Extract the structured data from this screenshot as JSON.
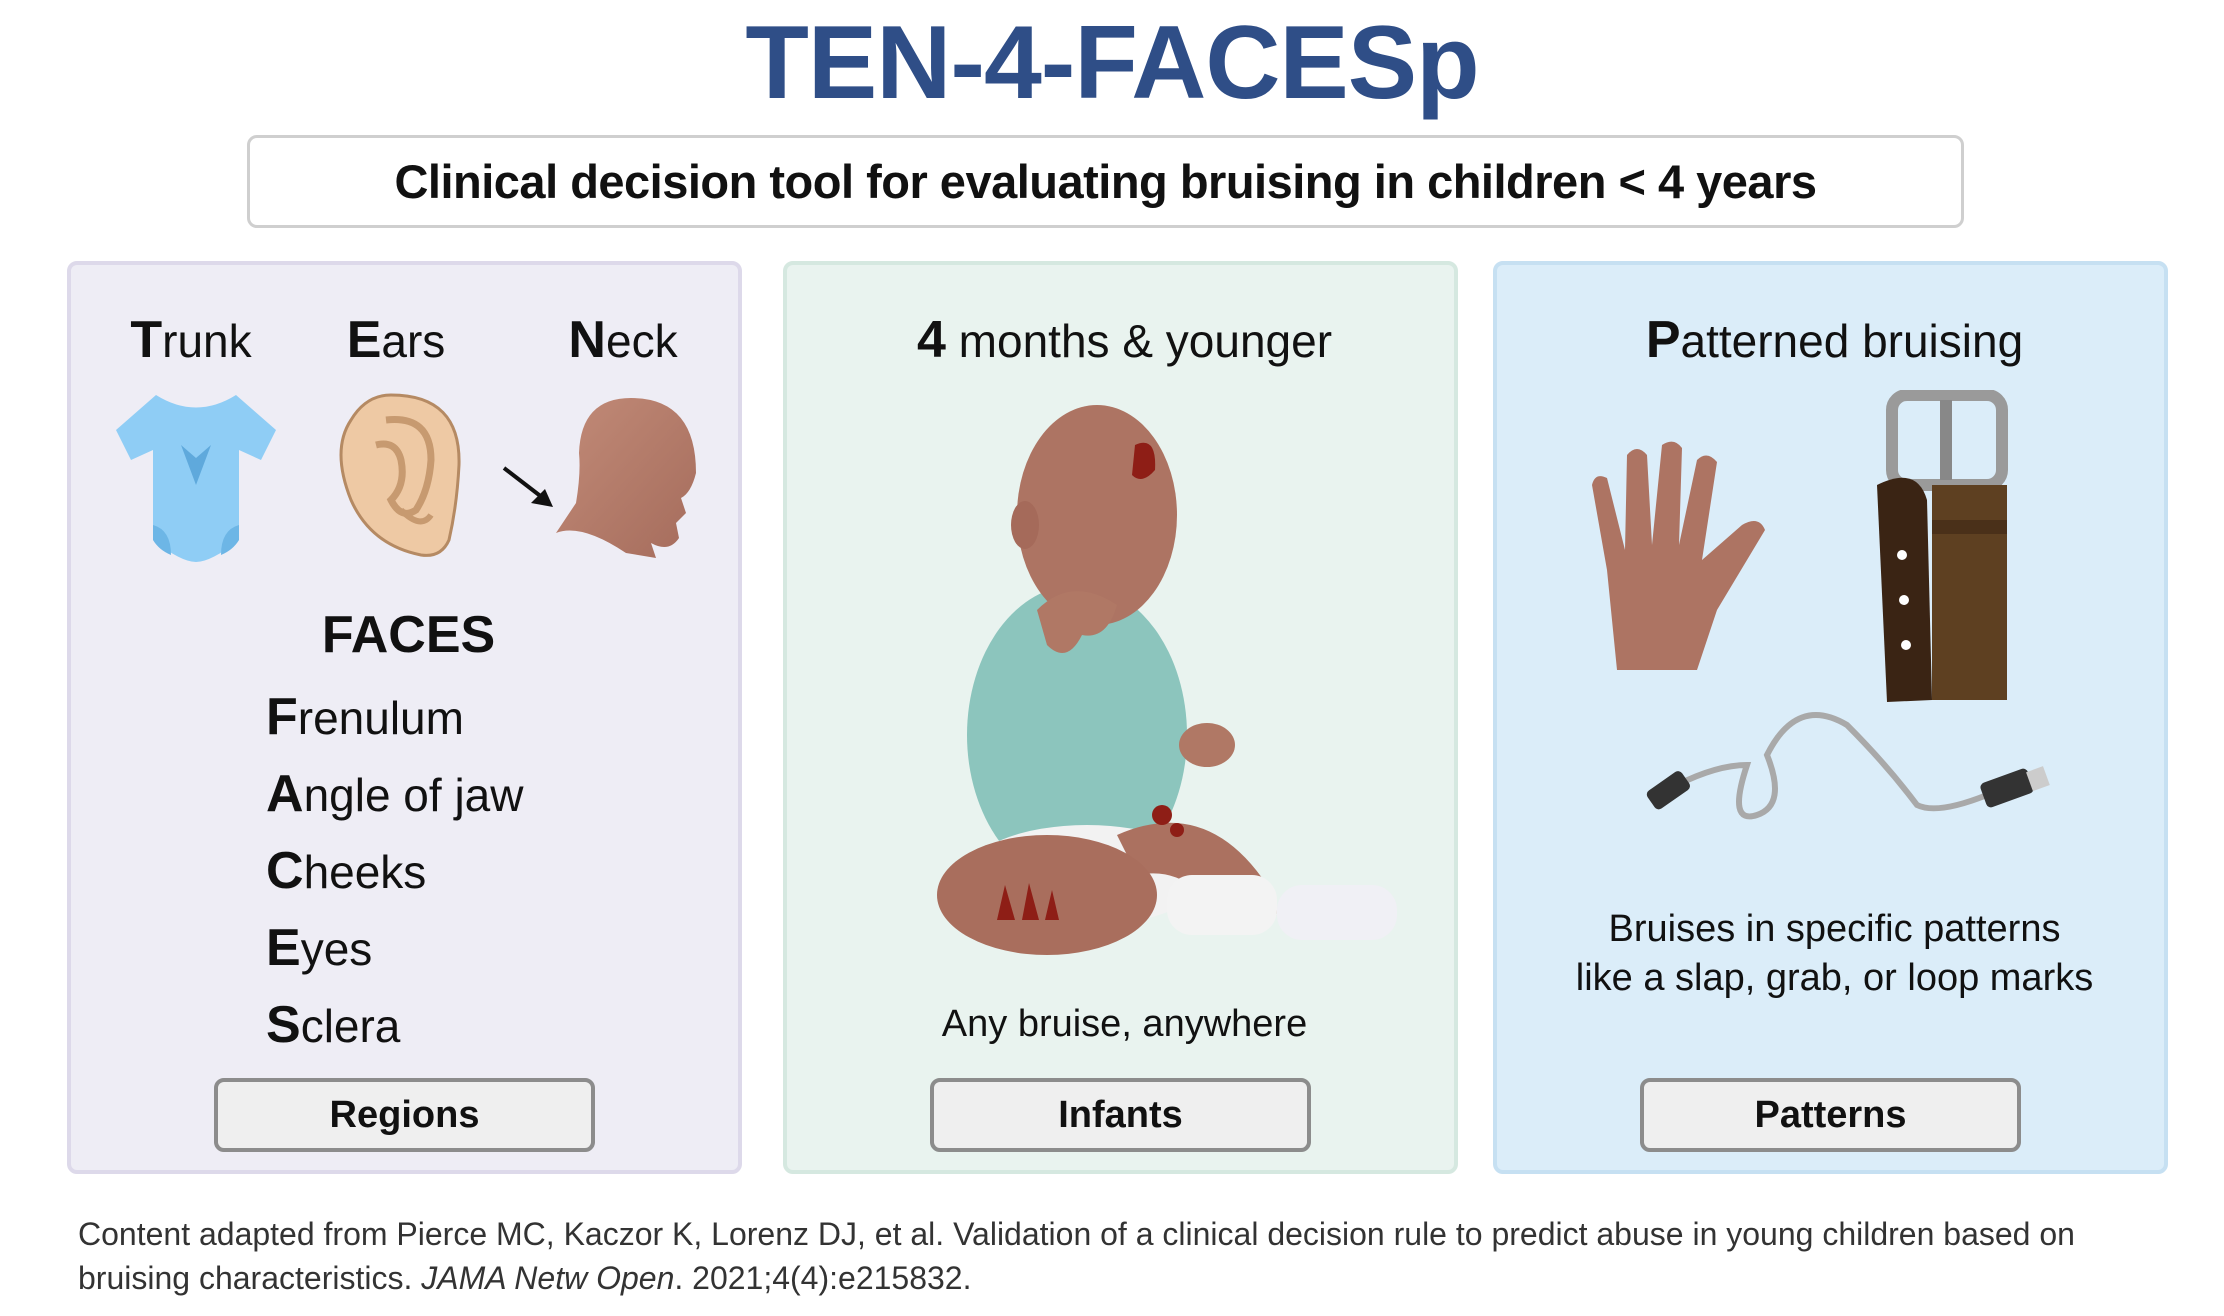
{
  "title": "TEN-4-FACESp",
  "subtitle": "Clinical decision tool for evaluating bruising in children < 4 years",
  "colors": {
    "title": "#2f4e87",
    "regions_bg": "#eeedf5",
    "infants_bg": "#e9f3ef",
    "patterns_bg": "#dbedf9"
  },
  "regions": {
    "headings": [
      {
        "initial": "T",
        "rest": "runk"
      },
      {
        "initial": "E",
        "rest": "ars"
      },
      {
        "initial": "N",
        "rest": "eck"
      }
    ],
    "icons": [
      "onesie-icon",
      "ear-icon",
      "arrow-icon",
      "head-profile-icon"
    ],
    "faces_heading": "FACES",
    "faces": [
      {
        "initial": "F",
        "rest": "renulum"
      },
      {
        "initial": "A",
        "rest": "ngle of jaw"
      },
      {
        "initial": "C",
        "rest": "heeks"
      },
      {
        "initial": "E",
        "rest": "yes"
      },
      {
        "initial": "S",
        "rest": "clera"
      }
    ],
    "button": "Regions"
  },
  "infants": {
    "heading_initial": "4",
    "heading_rest": " months & younger",
    "icon": "bruised-infant-illustration",
    "description": "Any bruise, anywhere",
    "button": "Infants"
  },
  "patterns": {
    "heading_initial": "P",
    "heading_rest": "atterned bruising",
    "icons": [
      "hand-icon",
      "belt-icon",
      "cable-icon"
    ],
    "description_line1": "Bruises in specific patterns",
    "description_line2": "like a slap, grab, or loop marks",
    "button": "Patterns"
  },
  "footer": {
    "text1": "Content adapted from Pierce MC, Kaczor K, Lorenz DJ, et al. Validation of a clinical decision rule to predict abuse in young children based on bruising characteristics. ",
    "journal": "JAMA Netw Open",
    "text2": ". 2021;4(4):e215832."
  }
}
